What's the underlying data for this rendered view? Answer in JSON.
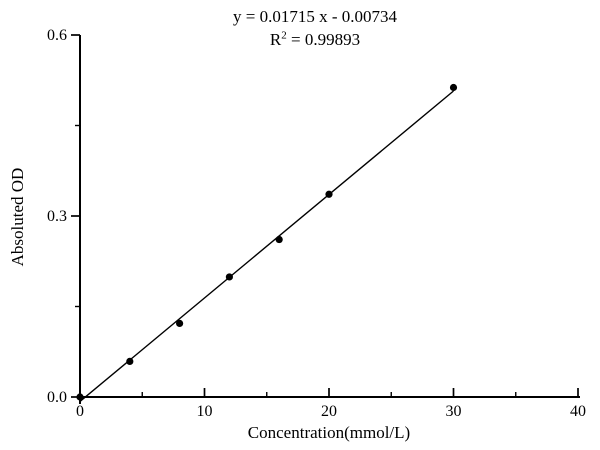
{
  "chart": {
    "equation": "y = 0.01715 x - 0.00734",
    "r_squared_display": {
      "base": "R",
      "sup": "2",
      "rest": " = 0.99893"
    }
  },
  "chart_data": {
    "type": "scatter",
    "title": "y = 0.01715 x - 0.00734",
    "subtitle": "R^2 = 0.99893",
    "xlabel": "Concentration(mmol/L)",
    "ylabel": "Absoluted OD",
    "xlim": [
      0,
      40
    ],
    "ylim": [
      0.0,
      0.6
    ],
    "x_major_ticks": [
      0,
      10,
      20,
      30,
      40
    ],
    "x_major_tick_labels": [
      "0",
      "10",
      "20",
      "30",
      "40"
    ],
    "x_minor_ticks": [
      5,
      15,
      25,
      35
    ],
    "y_major_ticks": [
      0.0,
      0.3,
      0.6
    ],
    "y_major_tick_labels": [
      "0.0",
      "0.3",
      "0.6"
    ],
    "y_minor_ticks": [
      0.15,
      0.45
    ],
    "points": {
      "x": [
        0,
        4,
        8,
        12,
        16,
        20,
        30
      ],
      "y": [
        0.0,
        0.059,
        0.122,
        0.199,
        0.261,
        0.336,
        0.513
      ]
    },
    "fit_line": {
      "slope": 0.01715,
      "intercept": -0.00734,
      "x_start": 0,
      "x_end": 30
    },
    "r_squared": 0.99893,
    "marker_color": "#000000",
    "line_color": "#000000",
    "axis_color": "#000000",
    "grid": false,
    "legend": null
  }
}
